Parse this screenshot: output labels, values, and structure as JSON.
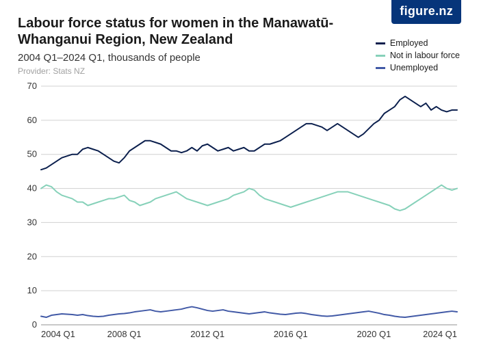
{
  "brand": "figure.nz",
  "title": "Labour force status for women in the Manawatū-Whanganui Region, New Zealand",
  "subtitle": "2004 Q1–2024 Q1, thousands of people",
  "provider": "Provider: Stats NZ",
  "colors": {
    "brand_bg": "#06357a",
    "brand_fg": "#ffffff",
    "title": "#1a1a1a",
    "subtitle": "#333333",
    "provider": "#a0a0a0",
    "grid": "#d0d0d0",
    "axis": "#909090",
    "bg": "#ffffff"
  },
  "chart": {
    "type": "line",
    "ylim": [
      0,
      70
    ],
    "yticks": [
      0,
      10,
      20,
      30,
      40,
      50,
      60,
      70
    ],
    "xticks": [
      "2004 Q1",
      "2008 Q1",
      "2012 Q1",
      "2016 Q1",
      "2020 Q1",
      "2024 Q1"
    ],
    "xtick_positions": [
      0,
      16,
      32,
      48,
      64,
      80
    ],
    "n_points": 81,
    "line_width": 2,
    "legend_position": "top-right",
    "grid_color": "#d0d0d0",
    "background_color": "#ffffff",
    "axis_fontsize": 13,
    "legend_fontsize": 12.5,
    "series": [
      {
        "name": "Employed",
        "label": "Employed",
        "color": "#0b1f4d",
        "values": [
          45.5,
          46,
          47,
          48,
          49,
          49.5,
          50,
          50,
          51.5,
          52,
          51.5,
          51,
          50,
          49,
          48,
          47.5,
          49,
          51,
          52,
          53,
          54,
          54,
          53.5,
          53,
          52,
          51,
          51,
          50.5,
          51,
          52,
          51,
          52.5,
          53,
          52,
          51,
          51.5,
          52,
          51,
          51.5,
          52,
          51,
          51,
          52,
          53,
          53,
          53.5,
          54,
          55,
          56,
          57,
          58,
          59,
          59,
          58.5,
          58,
          57,
          58,
          59,
          58,
          57,
          56,
          55,
          56,
          57.5,
          59,
          60,
          62,
          63,
          64,
          66,
          67,
          66,
          65,
          64,
          65,
          63,
          64,
          63,
          62.5,
          63,
          63
        ]
      },
      {
        "name": "Not in labour force",
        "label": "Not in labour force",
        "color": "#86d1b9",
        "values": [
          40,
          41,
          40.5,
          39,
          38,
          37.5,
          37,
          36,
          36,
          35,
          35.5,
          36,
          36.5,
          37,
          37,
          37.5,
          38,
          36.5,
          36,
          35,
          35.5,
          36,
          37,
          37.5,
          38,
          38.5,
          39,
          38,
          37,
          36.5,
          36,
          35.5,
          35,
          35.5,
          36,
          36.5,
          37,
          38,
          38.5,
          39,
          40,
          39.5,
          38,
          37,
          36.5,
          36,
          35.5,
          35,
          34.5,
          35,
          35.5,
          36,
          36.5,
          37,
          37.5,
          38,
          38.5,
          39,
          39,
          39,
          38.5,
          38,
          37.5,
          37,
          36.5,
          36,
          35.5,
          35,
          34,
          33.5,
          34,
          35,
          36,
          37,
          38,
          39,
          40,
          41,
          40,
          39.5,
          40
        ]
      },
      {
        "name": "Unemployed",
        "label": "Unemployed",
        "color": "#4159a6",
        "values": [
          2.5,
          2.2,
          2.8,
          3,
          3.2,
          3.1,
          3,
          2.8,
          3,
          2.7,
          2.5,
          2.4,
          2.5,
          2.8,
          3,
          3.2,
          3.3,
          3.5,
          3.8,
          4,
          4.2,
          4.4,
          4,
          3.8,
          4,
          4.2,
          4.4,
          4.6,
          5,
          5.3,
          5,
          4.6,
          4.2,
          4,
          4.2,
          4.4,
          4,
          3.8,
          3.6,
          3.4,
          3.2,
          3.4,
          3.6,
          3.8,
          3.5,
          3.3,
          3.1,
          3,
          3.2,
          3.4,
          3.5,
          3.3,
          3,
          2.8,
          2.6,
          2.5,
          2.6,
          2.8,
          3,
          3.2,
          3.4,
          3.6,
          3.8,
          4,
          3.7,
          3.4,
          3,
          2.8,
          2.5,
          2.3,
          2.2,
          2.4,
          2.6,
          2.8,
          3,
          3.2,
          3.4,
          3.6,
          3.8,
          4,
          3.8
        ]
      }
    ]
  }
}
